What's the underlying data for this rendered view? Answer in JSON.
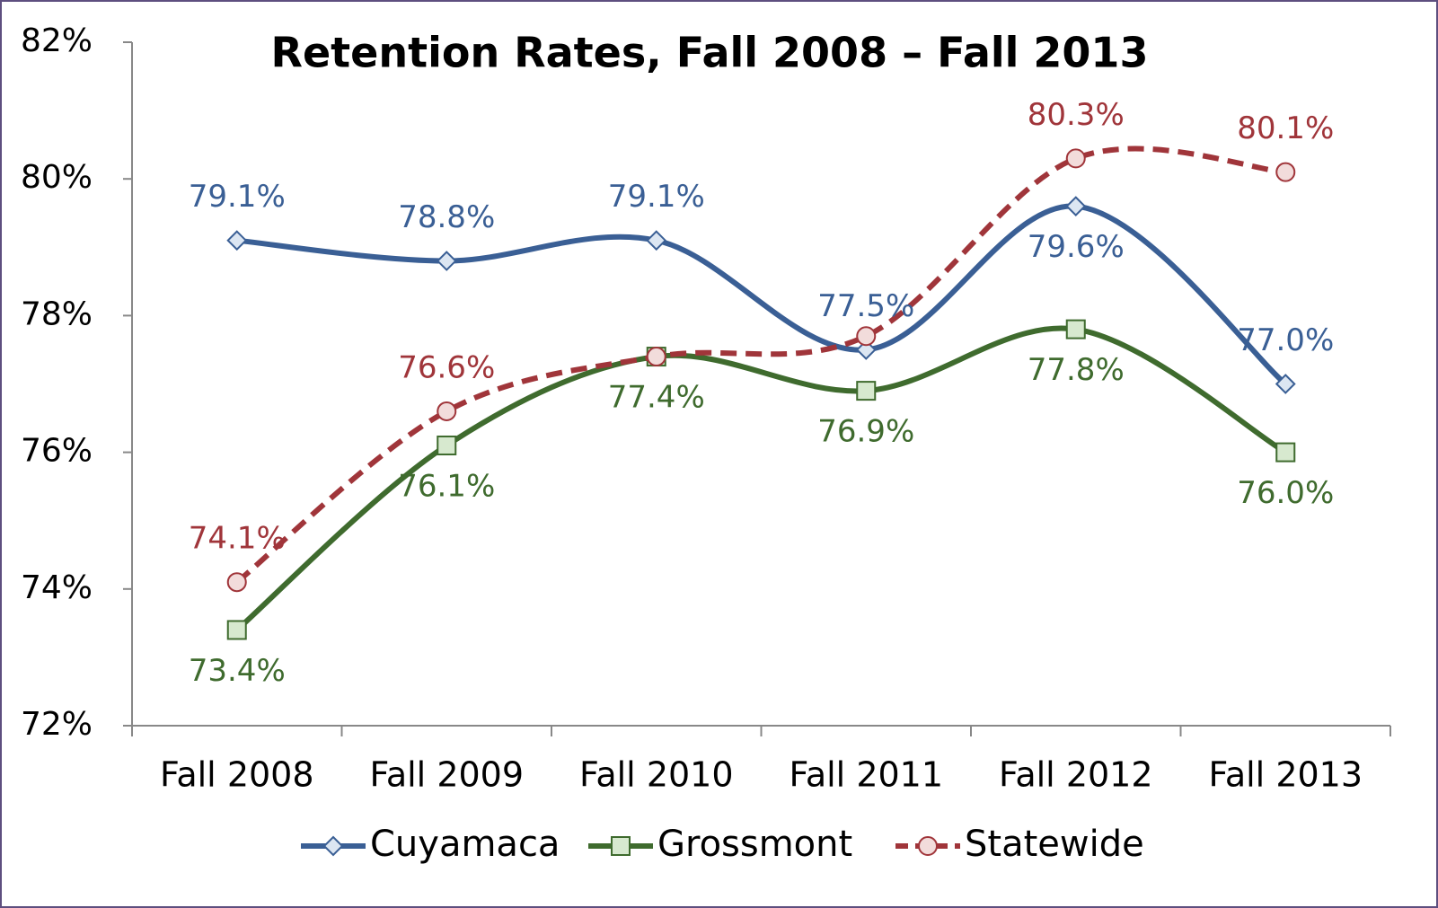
{
  "chart_data": {
    "type": "line",
    "title": "Retention Rates, Fall 2008 – Fall 2013",
    "categories": [
      "Fall 2008",
      "Fall 2009",
      "Fall 2010",
      "Fall 2011",
      "Fall 2012",
      "Fall 2013"
    ],
    "series": [
      {
        "name": "Cuyamaca",
        "color": "#3a5f95",
        "marker": "diamond",
        "values": [
          79.1,
          78.8,
          79.1,
          77.5,
          79.6,
          77.0
        ],
        "value_labels": [
          "79.1%",
          "78.8%",
          "79.1%",
          "77.5%",
          "79.6%",
          "77.0%"
        ]
      },
      {
        "name": "Grossmont",
        "color": "#3f6b2e",
        "marker": "square",
        "values": [
          73.4,
          76.1,
          77.4,
          76.9,
          77.8,
          76.0
        ],
        "value_labels": [
          "73.4%",
          "76.1%",
          "77.4%",
          "76.9%",
          "77.8%",
          "76.0%"
        ]
      },
      {
        "name": "Statewide",
        "color": "#a0353a",
        "marker": "circle",
        "dashed": true,
        "values": [
          74.1,
          76.6,
          77.4,
          77.7,
          80.3,
          80.1
        ],
        "value_labels": [
          "74.1%",
          "76.6%",
          null,
          null,
          "80.3%",
          "80.1%"
        ]
      }
    ],
    "ylim": [
      72,
      82
    ],
    "yticks": [
      {
        "value": 72,
        "label": "72%"
      },
      {
        "value": 74,
        "label": "74%"
      },
      {
        "value": 76,
        "label": "76%"
      },
      {
        "value": 78,
        "label": "78%"
      },
      {
        "value": 80,
        "label": "80%"
      },
      {
        "value": 82,
        "label": "82%"
      }
    ],
    "smooth": true,
    "grid": false,
    "legend": "bottom"
  }
}
